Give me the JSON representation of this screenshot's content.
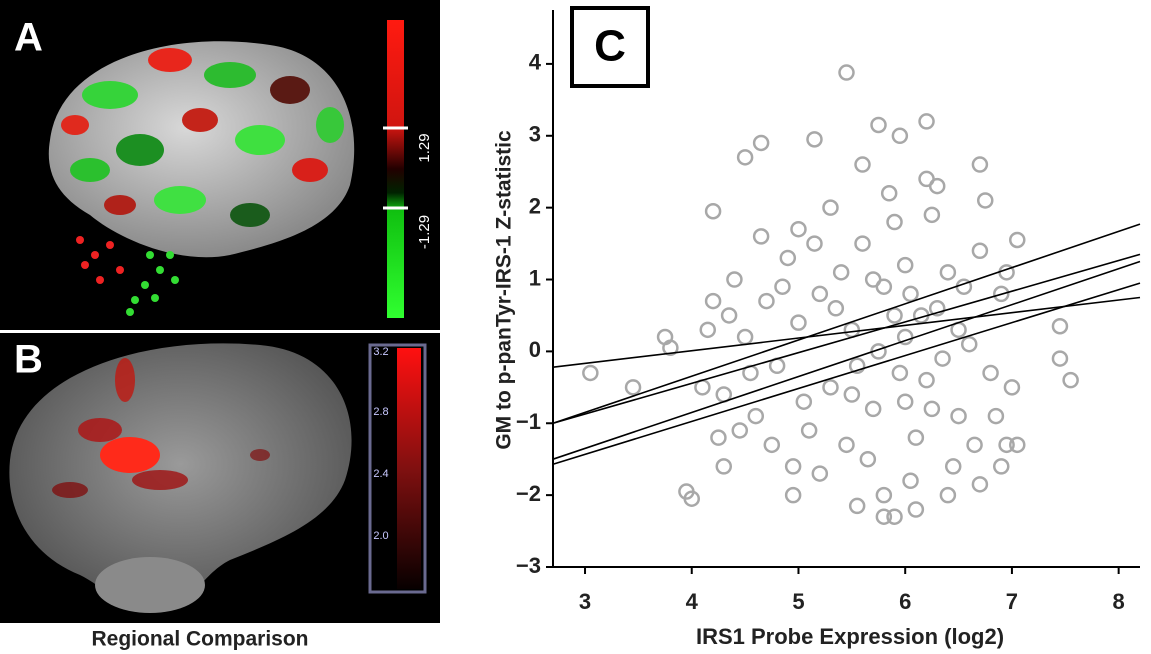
{
  "panels": {
    "a": {
      "label": "A",
      "colorbar_labels": [
        "1.29",
        "-1.29"
      ]
    },
    "b": {
      "label": "B",
      "colorbar_labels": [
        "3.2",
        "2.8",
        "2.4",
        "2.0"
      ],
      "caption": "Regional Comparison"
    },
    "c": {
      "label": "C"
    }
  },
  "chart_data": {
    "type": "scatter",
    "x_label": "IRS1 Probe Expression (log2)",
    "y_label": "GM to p-panTyr-IRS-1 Z-statistic",
    "xlim": [
      2.7,
      8.2
    ],
    "ylim": [
      -3,
      4.75
    ],
    "xticks": [
      3,
      4,
      5,
      6,
      7,
      8
    ],
    "yticks": [
      {
        "value": -3,
        "label": "−3"
      },
      {
        "value": -2,
        "label": "−2"
      },
      {
        "value": -1,
        "label": "−1"
      },
      0,
      1,
      2,
      3,
      4
    ],
    "series": [
      {
        "type": "scatter",
        "color": "#a8a8a8",
        "x": [
          5.6,
          5.8,
          6.0,
          6.2,
          6.4,
          5.7,
          5.9,
          6.1,
          6.3,
          6.5,
          5.5,
          5.65,
          5.85,
          6.05,
          6.25,
          6.45,
          6.6,
          5.4,
          5.3,
          5.2,
          5.1,
          5.0,
          4.9,
          4.8,
          4.7,
          4.6,
          4.5,
          4.4,
          4.3,
          6.7,
          6.8,
          6.9,
          5.75,
          5.95,
          6.15,
          6.35,
          5.55,
          5.45,
          6.55,
          6.65,
          6.0,
          6.2,
          5.8,
          6.1,
          6.3,
          5.6,
          6.4,
          5.3,
          5.2,
          5.0,
          4.95,
          4.85,
          4.75,
          4.65,
          4.55,
          4.45,
          4.35,
          4.25,
          4.2,
          4.15,
          6.75,
          6.85,
          6.95,
          7.0,
          6.9,
          5.05,
          5.15,
          5.35,
          5.9,
          6.05,
          5.7,
          6.25,
          6.5,
          5.5,
          6.0,
          3.05,
          3.45,
          3.75,
          3.8,
          3.95,
          4.0,
          5.45,
          6.2,
          5.75,
          5.95,
          4.65,
          4.5,
          7.45,
          7.55,
          7.45,
          7.05,
          6.95,
          7.05,
          5.9,
          5.8,
          5.55,
          4.95,
          4.2,
          5.15,
          6.7,
          6.7,
          4.1,
          4.3
        ],
        "y": [
          1.5,
          0.9,
          0.2,
          -0.4,
          1.1,
          -0.8,
          1.8,
          -1.2,
          0.6,
          -0.9,
          0.3,
          -1.5,
          2.2,
          -1.8,
          1.9,
          -1.6,
          0.1,
          1.1,
          -0.5,
          0.8,
          -1.1,
          0.4,
          1.3,
          -0.2,
          0.7,
          -0.9,
          0.2,
          1.0,
          -0.6,
          1.4,
          -0.3,
          0.8,
          0.0,
          -0.3,
          0.5,
          -0.1,
          -0.2,
          -1.3,
          0.9,
          -1.3,
          1.2,
          2.4,
          -2.0,
          -2.2,
          2.3,
          2.6,
          -2.0,
          2.0,
          -1.7,
          1.7,
          -1.6,
          0.9,
          -1.3,
          1.6,
          -0.3,
          -1.1,
          0.5,
          -1.2,
          0.7,
          0.3,
          2.1,
          -0.9,
          1.1,
          -0.5,
          -1.6,
          -0.7,
          1.5,
          0.6,
          0.5,
          0.8,
          1.0,
          -0.8,
          0.3,
          -0.6,
          -0.7,
          -0.3,
          -0.5,
          0.2,
          0.05,
          -1.95,
          -2.05,
          3.88,
          3.2,
          3.15,
          3.0,
          2.9,
          2.7,
          0.35,
          -0.4,
          -0.1,
          -1.3,
          -1.3,
          1.55,
          -2.3,
          -2.3,
          -2.15,
          -2.0,
          1.95,
          2.95,
          2.6,
          -1.85,
          -0.5,
          -1.6
        ]
      },
      {
        "type": "line",
        "color": "#000000",
        "x": [
          2.7,
          8.2
        ],
        "y": [
          -0.22,
          0.75
        ]
      },
      {
        "type": "line",
        "color": "#000000",
        "x": [
          2.7,
          8.2
        ],
        "y": [
          -1.0,
          1.77
        ]
      },
      {
        "type": "line",
        "color": "#000000",
        "x": [
          2.7,
          8.2
        ],
        "y": [
          -1.0,
          1.35
        ]
      },
      {
        "type": "line",
        "color": "#000000",
        "x": [
          2.7,
          8.2
        ],
        "y": [
          -1.5,
          1.25
        ]
      },
      {
        "type": "line",
        "color": "#000000",
        "x": [
          2.7,
          8.2
        ],
        "y": [
          -1.57,
          0.95
        ]
      }
    ]
  }
}
